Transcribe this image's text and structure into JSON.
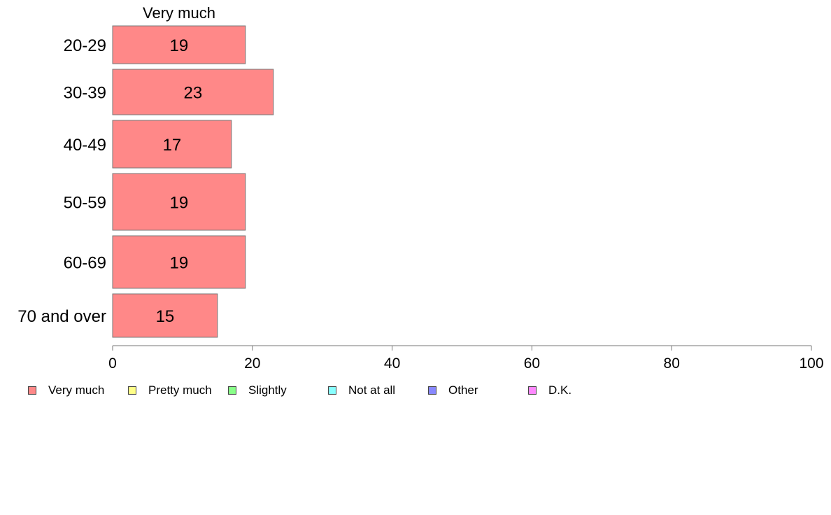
{
  "chart_data": {
    "type": "bar",
    "orientation": "horizontal",
    "title": "Very much",
    "categories": [
      "20-29",
      "30-39",
      "40-49",
      "50-59",
      "60-69",
      "70 and over"
    ],
    "series": [
      {
        "name": "Very much",
        "values": [
          19,
          23,
          17,
          19,
          19,
          15
        ],
        "data_labels": [
          "19",
          "23",
          "17",
          "19",
          "19",
          "15"
        ],
        "color": "#ff8888"
      }
    ],
    "xlim": [
      0,
      100
    ],
    "x_ticks": [
      0,
      20,
      40,
      60,
      80,
      100
    ],
    "x_tick_labels": [
      "0",
      "20",
      "40",
      "60",
      "80",
      "100"
    ],
    "grid": false,
    "legend_position": "bottom",
    "legend": [
      {
        "label": "Very much",
        "color": "#ff8888"
      },
      {
        "label": "Pretty much",
        "color": "#ffff88"
      },
      {
        "label": "Slightly",
        "color": "#88ff88"
      },
      {
        "label": "Not at all",
        "color": "#88ffff"
      },
      {
        "label": "Other",
        "color": "#8888ff"
      },
      {
        "label": "D.K.",
        "color": "#ff88ff"
      }
    ]
  }
}
